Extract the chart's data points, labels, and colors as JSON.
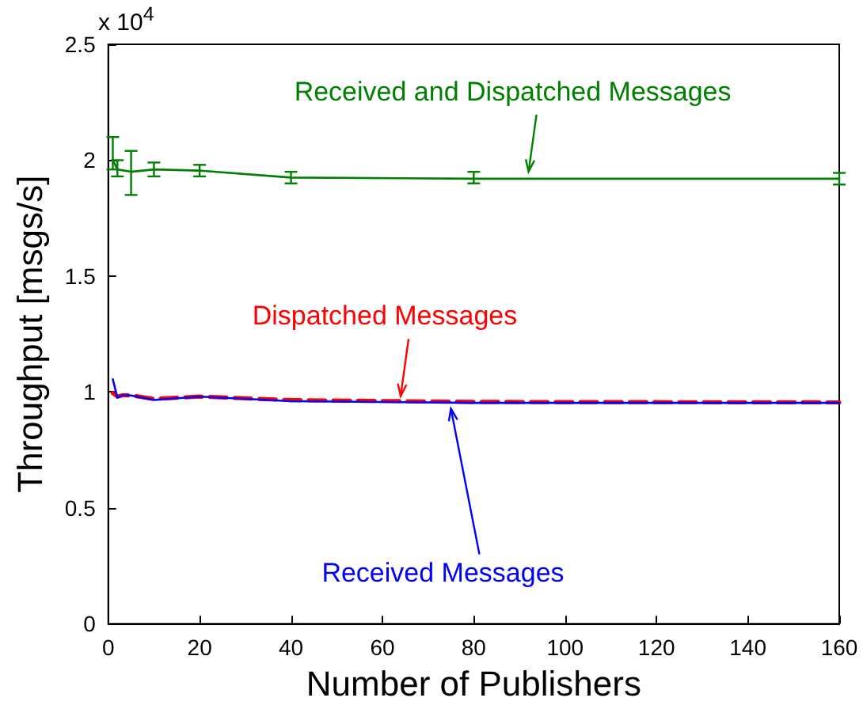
{
  "chart_data": {
    "type": "line",
    "xlabel": "Number of Publishers",
    "ylabel": "Throughput [msgs/s]",
    "xlim": [
      0,
      160
    ],
    "xticks": [
      0,
      20,
      40,
      60,
      80,
      100,
      120,
      140,
      160
    ],
    "ylim": [
      0,
      2.5
    ],
    "yticks": [
      0,
      0.5,
      1,
      1.5,
      2,
      2.5
    ],
    "marker": "none",
    "grid": false,
    "series": [
      {
        "color": "#008000",
        "line_style": "solid",
        "x": [
          1,
          2,
          5,
          10,
          20,
          40,
          80,
          160
        ],
        "values": [
          2.0,
          1.96,
          1.95,
          1.96,
          1.955,
          1.925,
          1.92,
          1.92
        ],
        "errors": [
          [
            1.96,
            2.1
          ],
          [
            1.93,
            2.0
          ],
          [
            1.85,
            2.04
          ],
          [
            1.93,
            1.99
          ],
          [
            1.93,
            1.98
          ],
          [
            1.9,
            1.95
          ],
          [
            1.9,
            1.95
          ],
          [
            1.895,
            1.945
          ]
        ]
      },
      {
        "color": "#ff0000",
        "line_style": "dashed",
        "x": [
          1,
          2,
          3,
          5,
          10,
          20,
          40,
          80,
          160
        ],
        "values": [
          0.995,
          0.98,
          0.985,
          0.985,
          0.97,
          0.98,
          0.965,
          0.957,
          0.955
        ]
      },
      {
        "color": "#0000ff",
        "line_style": "solid",
        "x": [
          1,
          2,
          3,
          5,
          10,
          20,
          40,
          80,
          160
        ],
        "values": [
          1.055,
          0.975,
          0.985,
          0.985,
          0.965,
          0.98,
          0.96,
          0.953,
          0.953
        ]
      }
    ],
    "annotations": [
      "x 10$^{4}$",
      {
        "text": "Received and Dispatched Messages",
        "x": 92,
        "y": 1.93
      },
      {
        "text": "Dispatched Messages",
        "x": 64,
        "y": 0.962
      },
      {
        "text": "Received Messages",
        "x": 75,
        "y": 0.948
      }
    ]
  }
}
